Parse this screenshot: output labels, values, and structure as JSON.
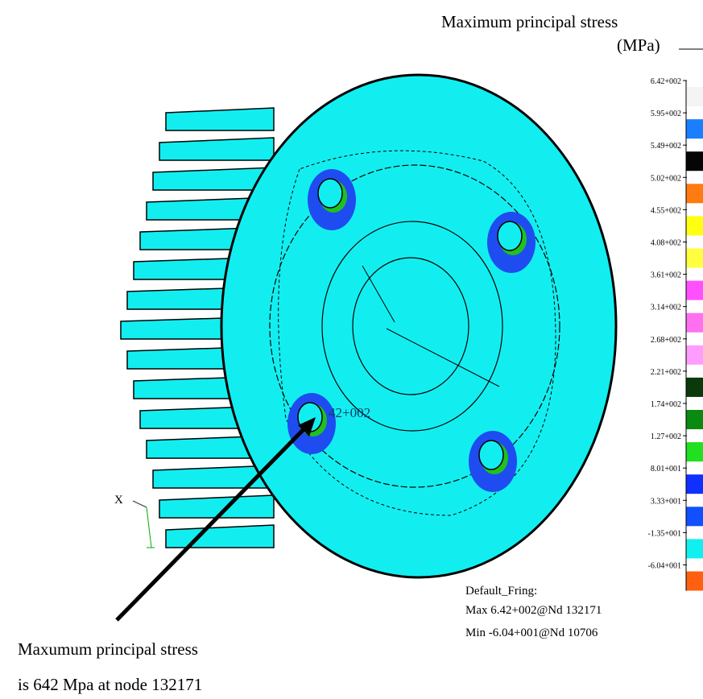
{
  "header": {
    "title": "Maximum principal stress",
    "unit": "(MPa)"
  },
  "legend": {
    "items": [
      {
        "label": "6.42+002",
        "color": "#f4f4f4"
      },
      {
        "label": "5.95+002",
        "color": "#1a7fff"
      },
      {
        "label": "5.49+002",
        "color": "#050505"
      },
      {
        "label": "5.02+002",
        "color": "#ff7a10"
      },
      {
        "label": "4.55+002",
        "color": "#ffff10"
      },
      {
        "label": "4.08+002",
        "color": "#ffff40"
      },
      {
        "label": "3.61+002",
        "color": "#ff50ff"
      },
      {
        "label": "3.14+002",
        "color": "#ff70f0"
      },
      {
        "label": "2.68+002",
        "color": "#ff9cff"
      },
      {
        "label": "2.21+002",
        "color": "#0a3a0a"
      },
      {
        "label": "1.74+002",
        "color": "#0a8a10"
      },
      {
        "label": "1.27+002",
        "color": "#20e020"
      },
      {
        "label": "8.01+001",
        "color": "#1030ff"
      },
      {
        "label": "3.33+001",
        "color": "#1050ff"
      },
      {
        "label": "-1.35+001",
        "color": "#10f0f0"
      },
      {
        "label": "-6.04+001",
        "color": "#ff6010"
      }
    ]
  },
  "model": {
    "node_label": "42+002",
    "axis_label": "X"
  },
  "summary": {
    "heading": "Default_Fring:",
    "max": "Max 6.42+002@Nd 132171",
    "min": "Min -6.04+001@Nd 10706"
  },
  "annotation": {
    "line1": "Maxumum principal stress",
    "line2": "is 642 Mpa at node 132171"
  }
}
